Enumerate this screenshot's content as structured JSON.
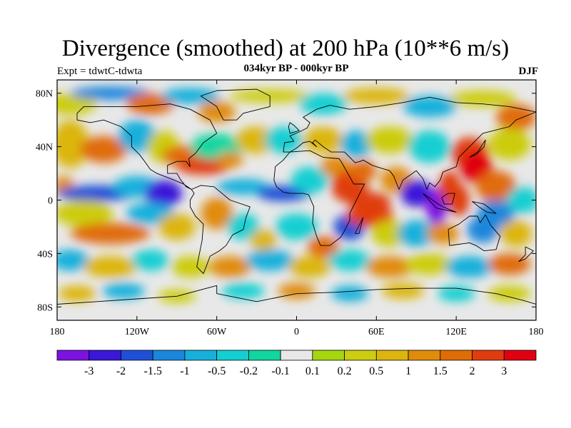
{
  "chart_data": {
    "type": "heatmap",
    "title": "Divergence (smoothed) at 200 hPa (10**6 m/s)",
    "left_label": "Expt = tdwtC-tdwta",
    "center_label": "034kyr BP - 000kyr BP",
    "right_label": "DJF",
    "x_ticks": [
      {
        "value": -180,
        "label": "180"
      },
      {
        "value": -120,
        "label": "120W"
      },
      {
        "value": -60,
        "label": "60W"
      },
      {
        "value": 0,
        "label": "0"
      },
      {
        "value": 60,
        "label": "60E"
      },
      {
        "value": 120,
        "label": "120E"
      },
      {
        "value": 180,
        "label": "180"
      }
    ],
    "y_ticks": [
      {
        "value": 80,
        "label": "80N"
      },
      {
        "value": 40,
        "label": "40N"
      },
      {
        "value": 0,
        "label": "0"
      },
      {
        "value": -40,
        "label": "40S"
      },
      {
        "value": -80,
        "label": "80S"
      }
    ],
    "xlim": [
      -180,
      180
    ],
    "ylim": [
      -90,
      90
    ],
    "colorbar": {
      "colors": [
        "#7b12e0",
        "#3a17d9",
        "#1f4fd6",
        "#1a86dc",
        "#17b0dc",
        "#14cfd2",
        "#12d6a0",
        "#e8e8e8",
        "#a6d60e",
        "#cccc10",
        "#dcb60c",
        "#e08c0a",
        "#e06c08",
        "#e03c10",
        "#e00010"
      ],
      "labels": [
        "-3",
        "-2",
        "-1.5",
        "-1",
        "-0.5",
        "-0.2",
        "-0.1",
        "0.1",
        "0.2",
        "0.5",
        "1",
        "1.5",
        "2",
        "3"
      ]
    }
  }
}
